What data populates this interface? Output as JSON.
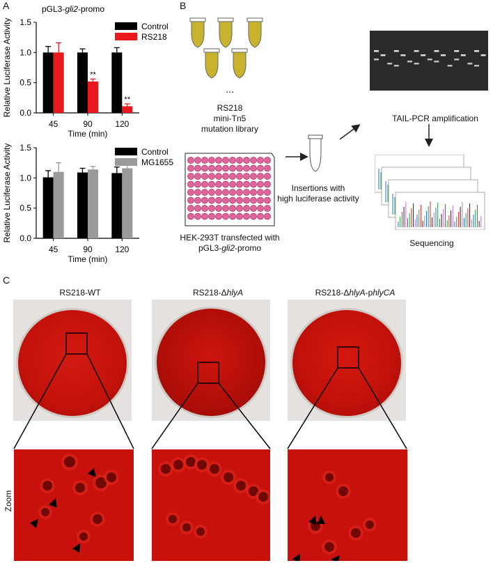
{
  "panels": {
    "a": "A",
    "b": "B",
    "c": "C"
  },
  "panel_a": {
    "chart_data": [
      {
        "type": "bar",
        "title": "pGL3-gli2-promo",
        "title_parts": {
          "prefix": "pGL3-",
          "italic": "gli2",
          "suffix": "-promo"
        },
        "xlabel": "Time (min)",
        "ylabel": "Relative Luciferase Activity",
        "categories": [
          "45",
          "90",
          "120"
        ],
        "ylim": [
          0,
          1.5
        ],
        "yticks": [
          "0.0",
          "0.5",
          "1.0",
          "1.5"
        ],
        "series": [
          {
            "name": "Control",
            "color": "#000000",
            "values": [
              1.0,
              1.0,
              1.0
            ],
            "errors": [
              0.1,
              0.06,
              0.08
            ]
          },
          {
            "name": "RS218",
            "color": "#e8191d",
            "values": [
              1.0,
              0.52,
              0.11
            ],
            "errors": [
              0.16,
              0.04,
              0.04
            ]
          }
        ],
        "annotations": [
          "**",
          "**"
        ],
        "legend": "top-right"
      },
      {
        "type": "bar",
        "xlabel": "Time (min)",
        "ylabel": "Relative Luciferase Activity",
        "categories": [
          "45",
          "90",
          "120"
        ],
        "ylim": [
          0,
          1.5
        ],
        "yticks": [
          "0.0",
          "0.5",
          "1.0",
          "1.5"
        ],
        "series": [
          {
            "name": "Control",
            "color": "#000000",
            "values": [
              1.01,
              1.09,
              1.08
            ],
            "errors": [
              0.11,
              0.07,
              0.1
            ]
          },
          {
            "name": "MG1655",
            "color": "#9a9a9a",
            "values": [
              1.1,
              1.14,
              1.16
            ],
            "errors": [
              0.15,
              0.05,
              0.07
            ]
          }
        ],
        "legend": "top-right"
      }
    ]
  },
  "panel_b": {
    "library": {
      "dots": "...",
      "l1": "RS218",
      "l2": "mini-Tn5",
      "l3": "mutation library"
    },
    "plate": {
      "l1": "HEK-293T transfected with",
      "l2_prefix": "pGL3-",
      "l2_italic": "gli2",
      "l2_suffix": "-promo"
    },
    "insertions": {
      "l1": "Insertions with",
      "l2": "high luciferase activity"
    },
    "tail_pcr": "TAIL-PCR amplification",
    "sequencing": "Sequencing"
  },
  "panel_c": {
    "strains": [
      {
        "prefix": "RS218-WT",
        "italic": "",
        "mid": "",
        "italic2": ""
      },
      {
        "prefix": "RS218-Δ",
        "italic": "hlyA",
        "mid": "",
        "italic2": ""
      },
      {
        "prefix": "RS218-Δ",
        "italic": "hlyA",
        "mid": "-p",
        "italic2": "hlyCA"
      }
    ],
    "zoom_label": "Zoom"
  },
  "colors": {
    "blood_agar": "#c8100c",
    "well_pink": "#e0649a",
    "tube_yellow": "#c9b22d"
  }
}
